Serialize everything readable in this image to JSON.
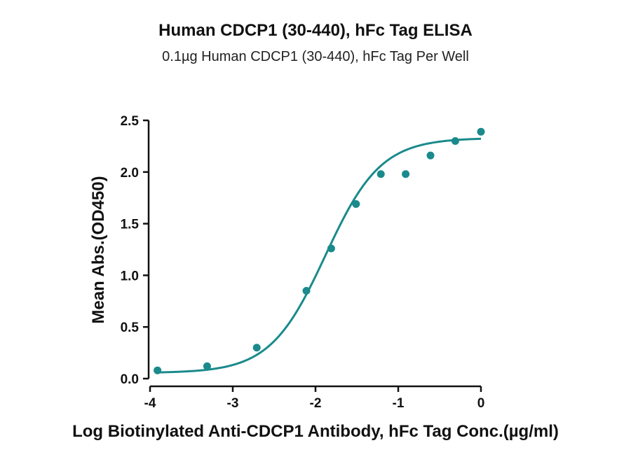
{
  "chart_data": {
    "type": "scatter",
    "title": "Human CDCP1 (30-440), hFc Tag ELISA",
    "subtitle": "0.1µg Human CDCP1 (30-440), hFc Tag Per Well",
    "xlabel": "Log Biotinylated Anti-CDCP1 Antibody, hFc Tag Conc.(µg/ml)",
    "ylabel": "Mean Abs.(OD450)",
    "xlim": [
      -4,
      0
    ],
    "ylim": [
      0,
      2.5
    ],
    "x_ticks": [
      -4,
      -3,
      -2,
      -1,
      0
    ],
    "x_tick_labels": [
      "-4",
      "-3",
      "-2",
      "-1",
      "0"
    ],
    "y_ticks": [
      0,
      0.5,
      1.0,
      1.5,
      2.0,
      2.5
    ],
    "y_tick_labels": [
      "0.0",
      "0.5",
      "1.0",
      "1.5",
      "2.0",
      "2.5"
    ],
    "grid": false,
    "legend": "none",
    "color": "#1a8a8c",
    "series": [
      {
        "points": [
          {
            "x": -3.91,
            "y": 0.08
          },
          {
            "x": -3.31,
            "y": 0.12
          },
          {
            "x": -2.71,
            "y": 0.3
          },
          {
            "x": -2.11,
            "y": 0.85
          },
          {
            "x": -1.81,
            "y": 1.26
          },
          {
            "x": -1.51,
            "y": 1.69
          },
          {
            "x": -1.21,
            "y": 1.98
          },
          {
            "x": -0.91,
            "y": 1.98
          },
          {
            "x": -0.61,
            "y": 2.16
          },
          {
            "x": -0.31,
            "y": 2.3
          },
          {
            "x": 0.0,
            "y": 2.39
          }
        ]
      }
    ],
    "fit_curve": {
      "model": "4PL",
      "bottom": 0.055,
      "top": 2.33,
      "log_ec50": -1.88,
      "hill_slope": 1.3
    }
  }
}
